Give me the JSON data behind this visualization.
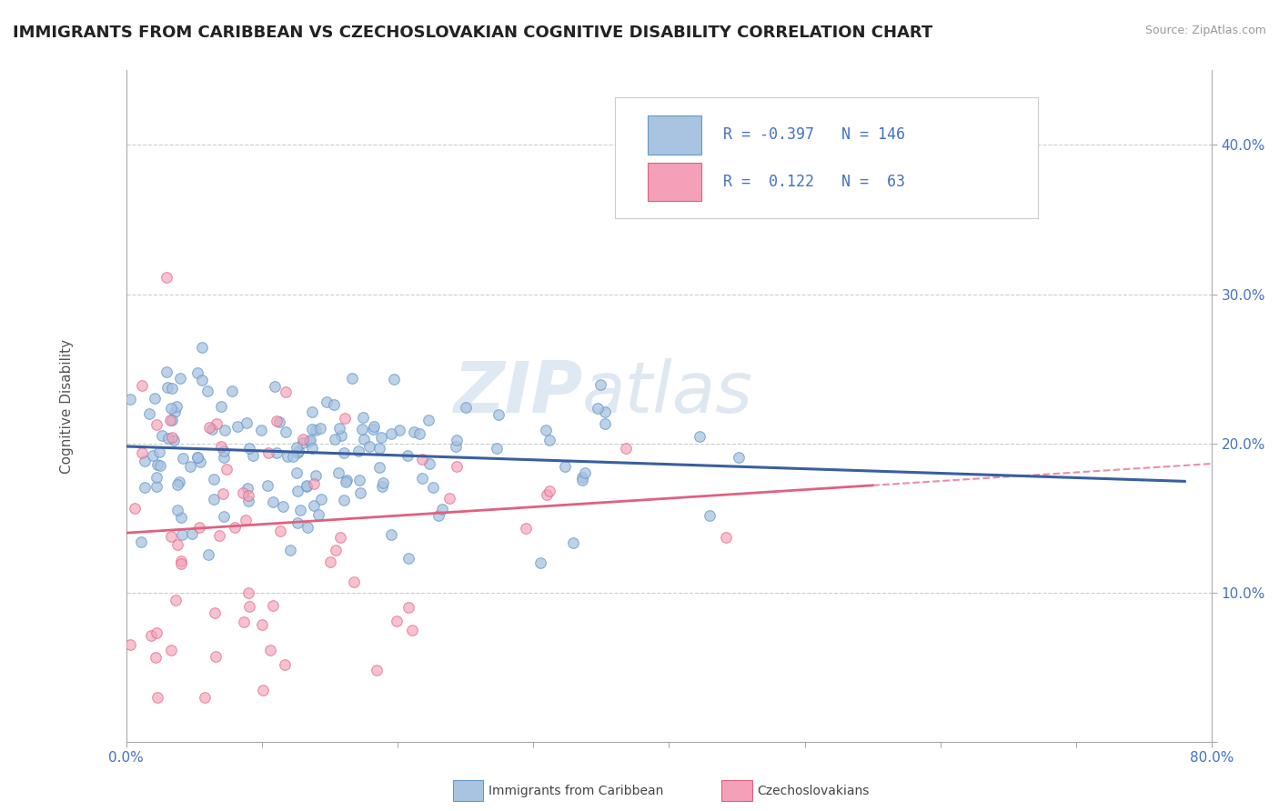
{
  "title": "IMMIGRANTS FROM CARIBBEAN VS CZECHOSLOVAKIAN COGNITIVE DISABILITY CORRELATION CHART",
  "source_text": "Source: ZipAtlas.com",
  "ylabel": "Cognitive Disability",
  "xlim": [
    0.0,
    0.8
  ],
  "ylim": [
    0.0,
    0.45
  ],
  "xticks": [
    0.0,
    0.1,
    0.2,
    0.3,
    0.4,
    0.5,
    0.6,
    0.7,
    0.8
  ],
  "xticklabels": [
    "0.0%",
    "",
    "",
    "",
    "",
    "",
    "",
    "",
    "80.0%"
  ],
  "yticks": [
    0.0,
    0.1,
    0.2,
    0.3,
    0.4
  ],
  "yticklabels": [
    "",
    "10.0%",
    "20.0%",
    "30.0%",
    "40.0%"
  ],
  "blue_color": "#a8c4e0",
  "blue_edge_color": "#6699cc",
  "blue_line_color": "#3a5fa0",
  "pink_color": "#f4a0b8",
  "pink_edge_color": "#e06080",
  "pink_line_color": "#e06080",
  "legend_R1": "-0.397",
  "legend_N1": "146",
  "legend_R2": "0.122",
  "legend_N2": "63",
  "watermark": "ZIPAtlas",
  "title_fontsize": 13,
  "axis_label_fontsize": 11,
  "tick_fontsize": 11,
  "blue_N": 146,
  "pink_N": 63,
  "blue_intercept": 0.198,
  "blue_slope": -0.03,
  "pink_intercept": 0.14,
  "pink_slope": 0.058
}
